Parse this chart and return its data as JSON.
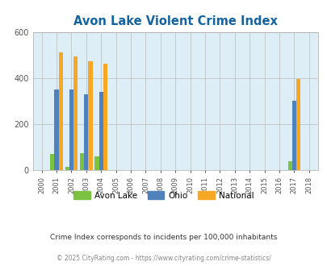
{
  "title": "Avon Lake Violent Crime Index",
  "years": [
    "2000",
    "2001",
    "2002",
    "2003",
    "2004",
    "2005",
    "2006",
    "2007",
    "2008",
    "2009",
    "2010",
    "2011",
    "2012",
    "2013",
    "2014",
    "2015",
    "2016",
    "2017",
    "2018"
  ],
  "avon_lake": [
    0,
    70,
    15,
    75,
    60,
    0,
    0,
    0,
    0,
    0,
    0,
    0,
    0,
    0,
    0,
    0,
    0,
    40,
    0
  ],
  "ohio": [
    0,
    350,
    350,
    330,
    340,
    0,
    0,
    0,
    0,
    0,
    0,
    0,
    0,
    0,
    0,
    0,
    0,
    300,
    0
  ],
  "national": [
    0,
    510,
    495,
    472,
    463,
    0,
    0,
    0,
    0,
    0,
    0,
    0,
    0,
    0,
    0,
    0,
    0,
    395,
    0
  ],
  "color_avon": "#7bc242",
  "color_ohio": "#4f81bd",
  "color_national": "#f6a724",
  "bg_color": "#ddeef6",
  "title_color": "#1464a0",
  "ylim": [
    0,
    600
  ],
  "yticks": [
    0,
    200,
    400,
    600
  ],
  "footnote1": "Crime Index corresponds to incidents per 100,000 inhabitants",
  "footnote2": "© 2025 CityRating.com - https://www.cityrating.com/crime-statistics/",
  "bar_width": 0.28
}
